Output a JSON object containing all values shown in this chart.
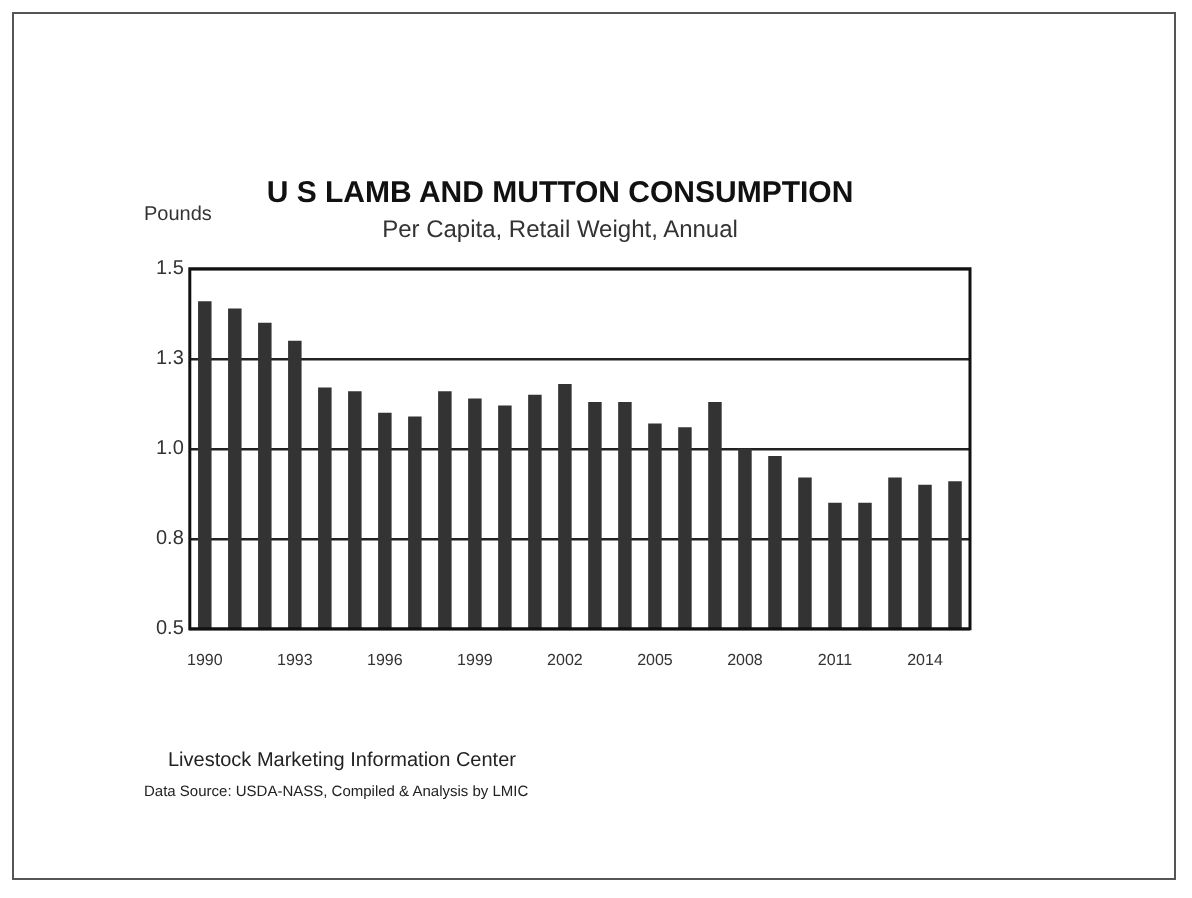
{
  "chart_data": {
    "type": "bar",
    "title": "U S LAMB AND MUTTON CONSUMPTION",
    "subtitle": "Per Capita, Retail Weight, Annual",
    "ylabel": "Pounds",
    "categories": [
      "1990",
      null,
      null,
      "1993",
      null,
      null,
      "1996",
      null,
      null,
      "1999",
      null,
      null,
      "2002",
      null,
      null,
      "2005",
      null,
      null,
      "2008",
      null,
      null,
      "2011",
      null,
      null,
      "2014",
      null
    ],
    "values": [
      1.41,
      1.39,
      1.35,
      1.3,
      1.17,
      1.16,
      1.1,
      1.09,
      1.16,
      1.14,
      1.12,
      1.15,
      1.18,
      1.13,
      1.13,
      1.07,
      1.06,
      1.13,
      1.0,
      0.98,
      0.92,
      0.85,
      0.85,
      0.92,
      0.9,
      0.91
    ],
    "color": "#333333",
    "ylim": [
      0.5,
      1.5
    ],
    "yticks": [
      {
        "value": 0.5,
        "label": "0.5"
      },
      {
        "value": 0.75,
        "label": "0.8"
      },
      {
        "value": 1.0,
        "label": "1.0"
      },
      {
        "value": 1.25,
        "label": "1.3"
      },
      {
        "value": 1.5,
        "label": "1.5"
      }
    ],
    "grid": "y",
    "legend": false,
    "annotations": [
      "Livestock Marketing Information Center",
      "Data Source:  USDA-NASS, Compiled & Analysis by LMIC"
    ]
  }
}
